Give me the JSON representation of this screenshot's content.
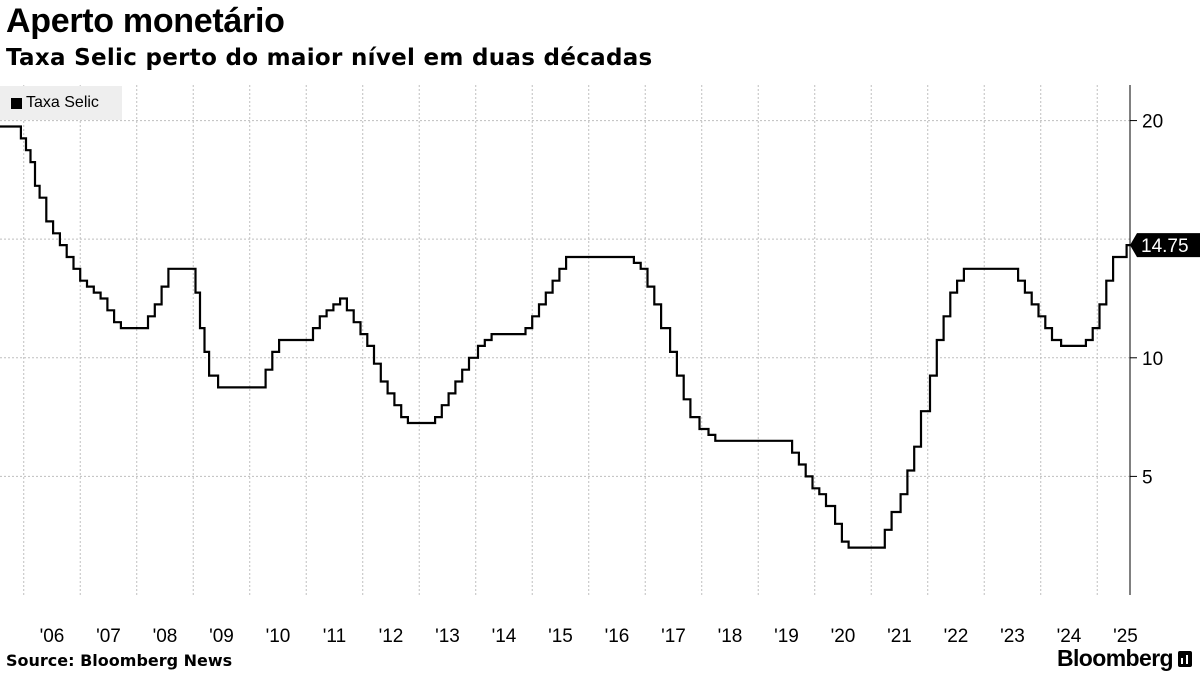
{
  "header": {
    "title": "Aperto monetário",
    "subtitle": "Taxa Selic perto do maior nível em duas décadas"
  },
  "footer": {
    "source": "Source: Bloomberg News",
    "logo_text": "Bloomberg"
  },
  "colors": {
    "line": "#000000",
    "grid": "#bfbfbf",
    "legend_bg": "#eeeeee"
  },
  "chart_data": {
    "type": "line",
    "title": "Aperto monetário",
    "subtitle": "Taxa Selic perto do maior nível em duas décadas",
    "legend": [
      "Taxa Selic"
    ],
    "legend_position": "top-left",
    "step": true,
    "grid": true,
    "ylim": [
      0,
      21.5
    ],
    "yticks": [
      5,
      10,
      20
    ],
    "xlim": [
      2005.58,
      2025.58
    ],
    "xticks": [
      "'06",
      "'07",
      "'08",
      "'09",
      "'10",
      "'11",
      "'12",
      "'13",
      "'14",
      "'15",
      "'16",
      "'17",
      "'18",
      "'19",
      "'20",
      "'21",
      "'22",
      "'23",
      "'24",
      "'25"
    ],
    "last_value_label": "14.75",
    "series": [
      {
        "name": "Taxa Selic",
        "x": [
          2005.58,
          2005.95,
          2006.04,
          2006.12,
          2006.2,
          2006.28,
          2006.4,
          2006.52,
          2006.64,
          2006.76,
          2006.88,
          2007.0,
          2007.12,
          2007.24,
          2007.36,
          2007.48,
          2007.6,
          2007.72,
          2008.2,
          2008.32,
          2008.44,
          2008.56,
          2008.68,
          2009.04,
          2009.12,
          2009.2,
          2009.28,
          2009.44,
          2009.56,
          2010.28,
          2010.4,
          2010.52,
          2011.0,
          2011.12,
          2011.24,
          2011.36,
          2011.48,
          2011.6,
          2011.72,
          2011.84,
          2011.96,
          2012.08,
          2012.2,
          2012.32,
          2012.44,
          2012.56,
          2012.68,
          2012.8,
          2013.28,
          2013.4,
          2013.52,
          2013.64,
          2013.76,
          2013.88,
          2014.04,
          2014.16,
          2014.28,
          2014.4,
          2014.88,
          2015.0,
          2015.12,
          2015.24,
          2015.36,
          2015.48,
          2015.6,
          2016.8,
          2016.92,
          2017.04,
          2017.16,
          2017.28,
          2017.44,
          2017.56,
          2017.68,
          2017.8,
          2017.96,
          2018.12,
          2018.24,
          2019.6,
          2019.72,
          2019.84,
          2019.96,
          2020.08,
          2020.2,
          2020.36,
          2020.48,
          2020.6,
          2021.24,
          2021.36,
          2021.52,
          2021.64,
          2021.76,
          2021.88,
          2022.04,
          2022.16,
          2022.28,
          2022.4,
          2022.52,
          2022.64,
          2023.6,
          2023.72,
          2023.84,
          2023.96,
          2024.08,
          2024.2,
          2024.36,
          2024.8,
          2024.92,
          2025.04,
          2025.16,
          2025.28,
          2025.4,
          2025.52,
          2025.58
        ],
        "values": [
          19.75,
          19.25,
          18.75,
          18.25,
          17.25,
          16.75,
          15.75,
          15.25,
          14.75,
          14.25,
          13.75,
          13.25,
          13.0,
          12.75,
          12.5,
          12.0,
          11.5,
          11.25,
          11.75,
          12.25,
          13.0,
          13.75,
          13.75,
          12.75,
          11.25,
          10.25,
          9.25,
          8.75,
          8.75,
          9.5,
          10.25,
          10.75,
          10.75,
          11.25,
          11.75,
          12.0,
          12.25,
          12.5,
          12.0,
          11.5,
          11.0,
          10.5,
          9.75,
          9.0,
          8.5,
          8.0,
          7.5,
          7.25,
          7.5,
          8.0,
          8.5,
          9.0,
          9.5,
          10.0,
          10.5,
          10.75,
          11.0,
          11.0,
          11.25,
          11.75,
          12.25,
          12.75,
          13.25,
          13.75,
          14.25,
          14.0,
          13.75,
          13.0,
          12.25,
          11.25,
          10.25,
          9.25,
          8.25,
          7.5,
          7.0,
          6.75,
          6.5,
          6.0,
          5.5,
          5.0,
          4.5,
          4.25,
          3.75,
          3.0,
          2.25,
          2.0,
          2.75,
          3.5,
          4.25,
          5.25,
          6.25,
          7.75,
          9.25,
          10.75,
          11.75,
          12.75,
          13.25,
          13.75,
          13.25,
          12.75,
          12.25,
          11.75,
          11.25,
          10.75,
          10.5,
          10.75,
          11.25,
          12.25,
          13.25,
          14.25,
          14.25,
          14.75,
          14.75
        ]
      }
    ]
  }
}
